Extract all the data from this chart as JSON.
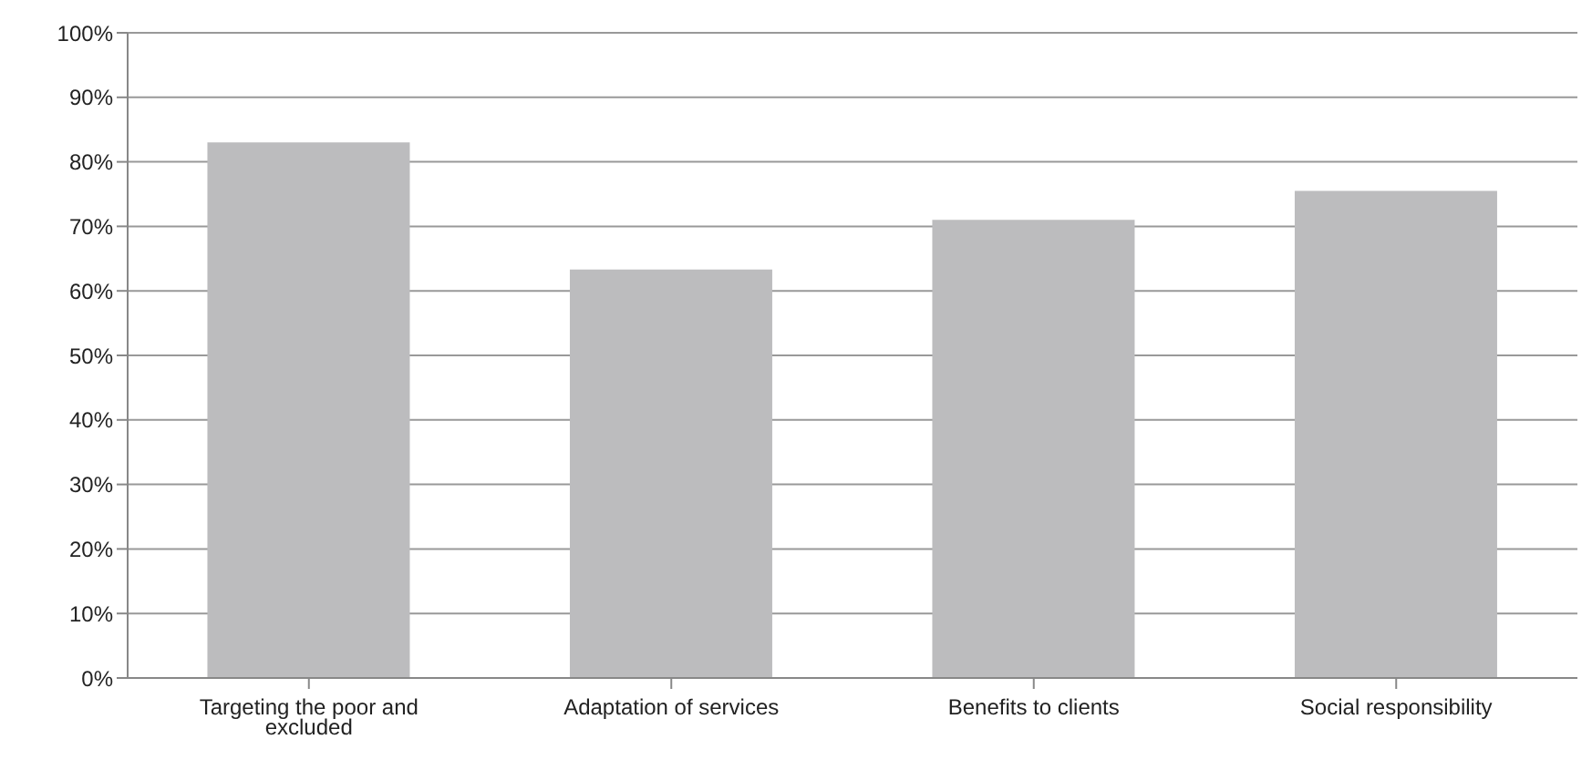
{
  "chart_data": {
    "type": "bar",
    "categories": [
      "Targeting the poor and excluded",
      "Adaptation of services",
      "Benefits to clients",
      "Social responsibility"
    ],
    "values": [
      83,
      63.3,
      71,
      75.5
    ],
    "color": "#bcbcbe",
    "ylim": [
      0,
      100
    ],
    "yticks": [
      {
        "value": 0,
        "label": "0%"
      },
      {
        "value": 10,
        "label": "10%"
      },
      {
        "value": 20,
        "label": "20%"
      },
      {
        "value": 30,
        "label": "30%"
      },
      {
        "value": 40,
        "label": "40%"
      },
      {
        "value": 50,
        "label": "50%"
      },
      {
        "value": 60,
        "label": "60%"
      },
      {
        "value": 70,
        "label": "70%"
      },
      {
        "value": 80,
        "label": "80%"
      },
      {
        "value": 90,
        "label": "90%"
      },
      {
        "value": 100,
        "label": "100%"
      }
    ],
    "grid": "y"
  }
}
